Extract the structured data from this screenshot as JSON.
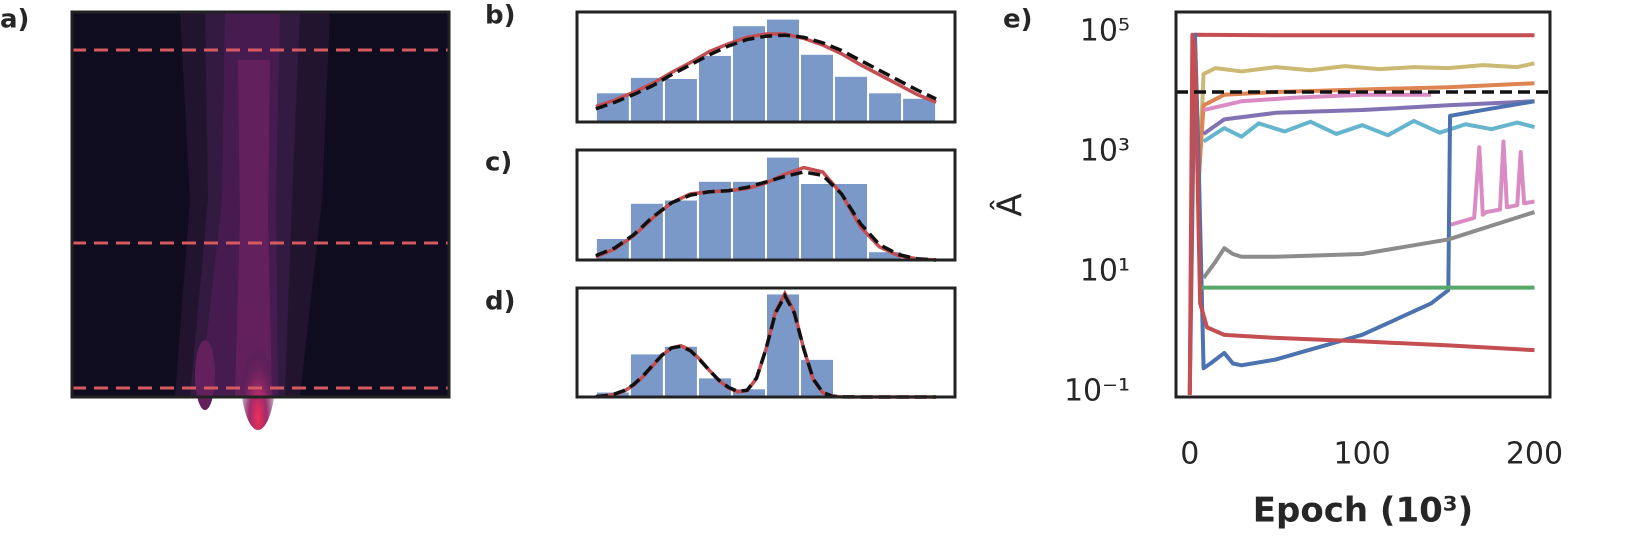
{
  "chart_data": [
    {
      "type": "contour",
      "label": "a)"
    },
    {
      "type": "histogram",
      "label": "b)",
      "bins": [
        5,
        14,
        23,
        32,
        41,
        50,
        59,
        68,
        77,
        86,
        95
      ],
      "counts": [
        27,
        41,
        40,
        61,
        88,
        94,
        62,
        42,
        27,
        22
      ],
      "color": "#7a99c9",
      "xlim": [
        0,
        100
      ],
      "ylim": [
        0,
        100
      ],
      "series": [
        {
          "color": "#c44e52",
          "dashed": false,
          "x": [
            5,
            10,
            15,
            20,
            25,
            30,
            35,
            40,
            45,
            50,
            55,
            60,
            65,
            70,
            75,
            80,
            85,
            90,
            95
          ],
          "values": [
            14,
            20,
            27,
            35,
            45,
            54,
            64,
            71,
            77,
            80,
            80,
            76,
            70,
            62,
            52,
            43,
            34,
            25,
            18
          ]
        },
        {
          "color": "#111111",
          "dashed": true,
          "x": [
            5,
            10,
            15,
            20,
            25,
            30,
            35,
            40,
            45,
            50,
            55,
            60,
            65,
            70,
            75,
            80,
            85,
            90,
            95
          ],
          "values": [
            12,
            18,
            25,
            33,
            43,
            52,
            61,
            69,
            75,
            78,
            79,
            77,
            72,
            65,
            56,
            47,
            38,
            29,
            21
          ]
        }
      ]
    },
    {
      "type": "histogram",
      "label": "c)",
      "bins": [
        5,
        14,
        23,
        32,
        41,
        50,
        59,
        68,
        77,
        86,
        95
      ],
      "counts": [
        20,
        52,
        55,
        72,
        72,
        94,
        70,
        70,
        8,
        2
      ],
      "color": "#7a99c9",
      "xlim": [
        0,
        100
      ],
      "ylim": [
        0,
        100
      ],
      "series": [
        {
          "color": "#c44e52",
          "dashed": false,
          "x": [
            5,
            10,
            15,
            20,
            25,
            30,
            35,
            40,
            45,
            50,
            55,
            60,
            65,
            70,
            75,
            80,
            85,
            90,
            95
          ],
          "values": [
            3,
            10,
            22,
            38,
            52,
            60,
            62,
            63,
            65,
            70,
            78,
            84,
            80,
            60,
            30,
            12,
            4,
            1,
            0
          ]
        },
        {
          "color": "#111111",
          "dashed": true,
          "x": [
            5,
            10,
            15,
            20,
            25,
            30,
            35,
            40,
            45,
            50,
            55,
            60,
            65,
            70,
            75,
            80,
            85,
            90,
            95
          ],
          "values": [
            4,
            11,
            23,
            39,
            52,
            59,
            62,
            63,
            66,
            71,
            76,
            80,
            77,
            60,
            33,
            14,
            5,
            1,
            0
          ]
        }
      ]
    },
    {
      "type": "histogram",
      "label": "d)",
      "bins": [
        5,
        14,
        23,
        32,
        41,
        50,
        59,
        68,
        77,
        86,
        95
      ],
      "counts": [
        5,
        40,
        47,
        18,
        8,
        95,
        35,
        0,
        0,
        0
      ],
      "color": "#7a99c9",
      "xlim": [
        0,
        100
      ],
      "ylim": [
        0,
        100
      ],
      "series": [
        {
          "color": "#c44e52",
          "dashed": false,
          "x": [
            5,
            7.5,
            10,
            12.5,
            15,
            17.5,
            20,
            22.5,
            25,
            27.5,
            30,
            32.5,
            35,
            37.5,
            40,
            42.5,
            45,
            47.5,
            50,
            52.5,
            55,
            57.5,
            60,
            62.5,
            65,
            67.5,
            70,
            80,
            95
          ],
          "values": [
            0.3,
            1,
            2.5,
            5.5,
            10.8,
            18.7,
            28.5,
            38.2,
            45,
            47,
            43,
            34.5,
            24.5,
            15.3,
            8.5,
            4.8,
            5.9,
            17,
            44,
            78,
            95,
            78,
            44,
            16,
            4,
            0.7,
            0.1,
            0,
            0
          ]
        },
        {
          "color": "#111111",
          "dashed": true,
          "x": [
            5,
            7.5,
            10,
            12.5,
            15,
            17.5,
            20,
            22.5,
            25,
            27.5,
            30,
            32.5,
            35,
            37.5,
            40,
            42.5,
            45,
            47.5,
            50,
            52.5,
            55,
            57.5,
            60,
            62.5,
            65,
            67.5,
            70,
            80,
            95
          ],
          "values": [
            0.4,
            1.2,
            2.8,
            6,
            11.5,
            19.5,
            29,
            38.5,
            45,
            46.5,
            42.5,
            34,
            24.5,
            15.5,
            9,
            5.2,
            6.2,
            17.5,
            44,
            77,
            93,
            77,
            44,
            16.5,
            4.3,
            0.8,
            0.1,
            0,
            0
          ]
        }
      ]
    },
    {
      "type": "line",
      "label": "e)",
      "ylabel": "Â",
      "xlabel": "Epoch (10³)",
      "log_y": true,
      "xlim": [
        -8,
        209
      ],
      "ylim": [
        0.083,
        215000
      ],
      "xticks": [
        0,
        100,
        200
      ],
      "yticks": [
        {
          "value": 0.1,
          "label": "10⁻¹"
        },
        {
          "value": 10,
          "label": "10¹"
        },
        {
          "value": 1000,
          "label": "10³"
        },
        {
          "value": 100000,
          "label": "10⁵"
        }
      ],
      "hline": 10000,
      "series": [
        {
          "color": "#c44e52",
          "x": [
            0,
            2,
            3,
            50,
            100,
            150,
            200
          ],
          "values": [
            0.09,
            1000,
            90000,
            88000,
            88000,
            88000,
            88000
          ]
        },
        {
          "color": "#ccb974",
          "x": [
            5,
            8,
            15,
            30,
            50,
            70,
            90,
            110,
            130,
            150,
            170,
            190,
            200
          ],
          "values": [
            200,
            20000,
            25000,
            22000,
            26000,
            23000,
            27000,
            24000,
            26000,
            25000,
            28000,
            26000,
            30000
          ]
        },
        {
          "color": "#dd8452",
          "x": [
            5,
            8,
            20,
            50,
            100,
            150,
            200
          ],
          "values": [
            300,
            6000,
            9000,
            10000,
            11000,
            12000,
            14000
          ]
        },
        {
          "color": "#da8bc3",
          "x": [
            8,
            30,
            60,
            100,
            140,
            145,
            150,
            165,
            168,
            170,
            172,
            180,
            182,
            184,
            190,
            192,
            194,
            200
          ],
          "values": [
            5000,
            7000,
            8000,
            9000,
            9000,
            null,
            60,
            80,
            1200,
            90,
            100,
            110,
            1500,
            120,
            130,
            1000,
            140,
            150
          ]
        },
        {
          "color": "#8172b3",
          "x": [
            8,
            20,
            50,
            100,
            150,
            200
          ],
          "values": [
            2000,
            3500,
            4500,
            5000,
            6000,
            7000
          ]
        },
        {
          "color": "#64b5cd",
          "x": [
            8,
            20,
            30,
            40,
            55,
            70,
            85,
            100,
            115,
            130,
            145,
            160,
            175,
            190,
            200
          ],
          "values": [
            1500,
            2500,
            1800,
            3000,
            2200,
            3200,
            2000,
            2800,
            1900,
            3300,
            2100,
            2900,
            2400,
            3100,
            2600
          ]
        },
        {
          "color": "#4c72b0",
          "x": [
            0,
            2,
            3,
            5,
            8,
            12,
            20,
            25,
            30,
            50,
            100,
            140,
            150,
            151,
            170,
            200
          ],
          "values": [
            0.1,
            50000,
            90000,
            1000,
            0.25,
            0.3,
            0.45,
            0.3,
            0.28,
            0.35,
            0.9,
            3,
            5,
            4000,
            5000,
            7000
          ]
        },
        {
          "color": "#55a868",
          "x": [
            5,
            8,
            200
          ],
          "values": [
            5.5,
            5.5,
            5.5
          ]
        },
        {
          "color": "#8c8c8c",
          "x": [
            8,
            15,
            20,
            25,
            30,
            50,
            100,
            150,
            200
          ],
          "values": [
            8,
            15,
            25,
            20,
            18,
            18,
            20,
            35,
            100
          ]
        },
        {
          "color": "#c44e52",
          "x": [
            0,
            1.5,
            3,
            6,
            10,
            20,
            50,
            100,
            150,
            200
          ],
          "values": [
            0.09,
            90000,
            50000,
            3,
            1.2,
            0.9,
            0.8,
            0.7,
            0.6,
            0.5
          ]
        }
      ]
    }
  ]
}
